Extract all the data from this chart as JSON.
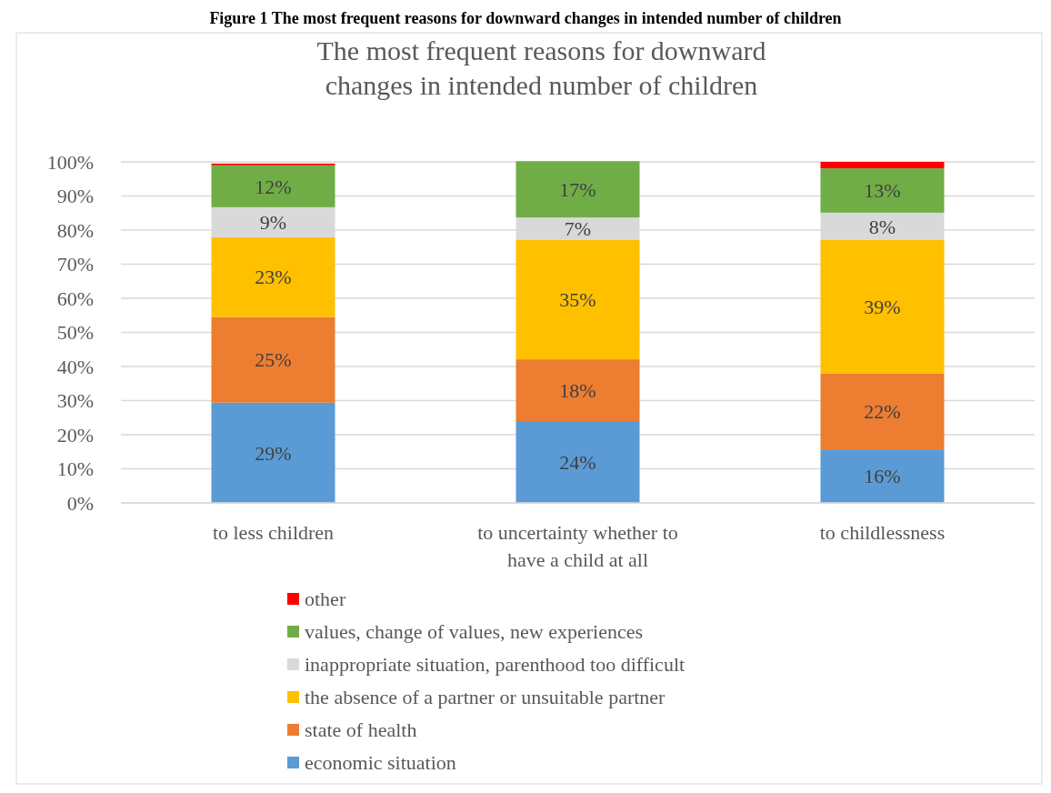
{
  "chart_data": {
    "type": "bar",
    "stacked": true,
    "title": "The most frequent reasons for downward changes in intended number of children",
    "annotations": [
      "Figure 1 The most frequent reasons for downward changes in intended number of children"
    ],
    "categories": [
      "to less children",
      "to uncertainty whether to have a child at all",
      "to childlessness"
    ],
    "ylim": [
      0,
      100
    ],
    "yticks": [
      {
        "value": 0,
        "label": "0%"
      },
      {
        "value": 10,
        "label": "10%"
      },
      {
        "value": 20,
        "label": "20%"
      },
      {
        "value": 30,
        "label": "30%"
      },
      {
        "value": 40,
        "label": "40%"
      },
      {
        "value": 50,
        "label": "50%"
      },
      {
        "value": 60,
        "label": "60%"
      },
      {
        "value": 70,
        "label": "70%"
      },
      {
        "value": 80,
        "label": "80%"
      },
      {
        "value": 90,
        "label": "90%"
      },
      {
        "value": 100,
        "label": "100%"
      }
    ],
    "grid": "y",
    "legend": "bottom",
    "series": [
      {
        "name": "economic situation",
        "color": "#5b9bd5",
        "values": [
          29.4,
          24,
          15.7
        ],
        "value_labels": [
          "29%",
          "24%",
          "16%"
        ]
      },
      {
        "name": "state of health",
        "color": "#ed7d31",
        "values": [
          25.1,
          18.1,
          22.2
        ],
        "value_labels": [
          "25%",
          "18%",
          "22%"
        ]
      },
      {
        "name": "the absence of a partner or unsuitable partner",
        "color": "#ffc000",
        "values": [
          23.4,
          35,
          39.2
        ],
        "value_labels": [
          "23%",
          "35%",
          "39%"
        ]
      },
      {
        "name": "inappropriate situation, parenthood too difficult",
        "color": "#d9d9d9",
        "values": [
          8.8,
          6.6,
          8
        ],
        "value_labels": [
          "9%",
          "7%",
          "8%"
        ]
      },
      {
        "name": "values, change of values, new experiences",
        "color": "#70ad47",
        "values": [
          12.3,
          16.5,
          13
        ],
        "value_labels": [
          "12%",
          "17%",
          "13%"
        ]
      },
      {
        "name": "other",
        "color": "#ff0000",
        "values": [
          0.5,
          0,
          1.9
        ],
        "value_labels": [
          null,
          null,
          null
        ]
      }
    ]
  }
}
